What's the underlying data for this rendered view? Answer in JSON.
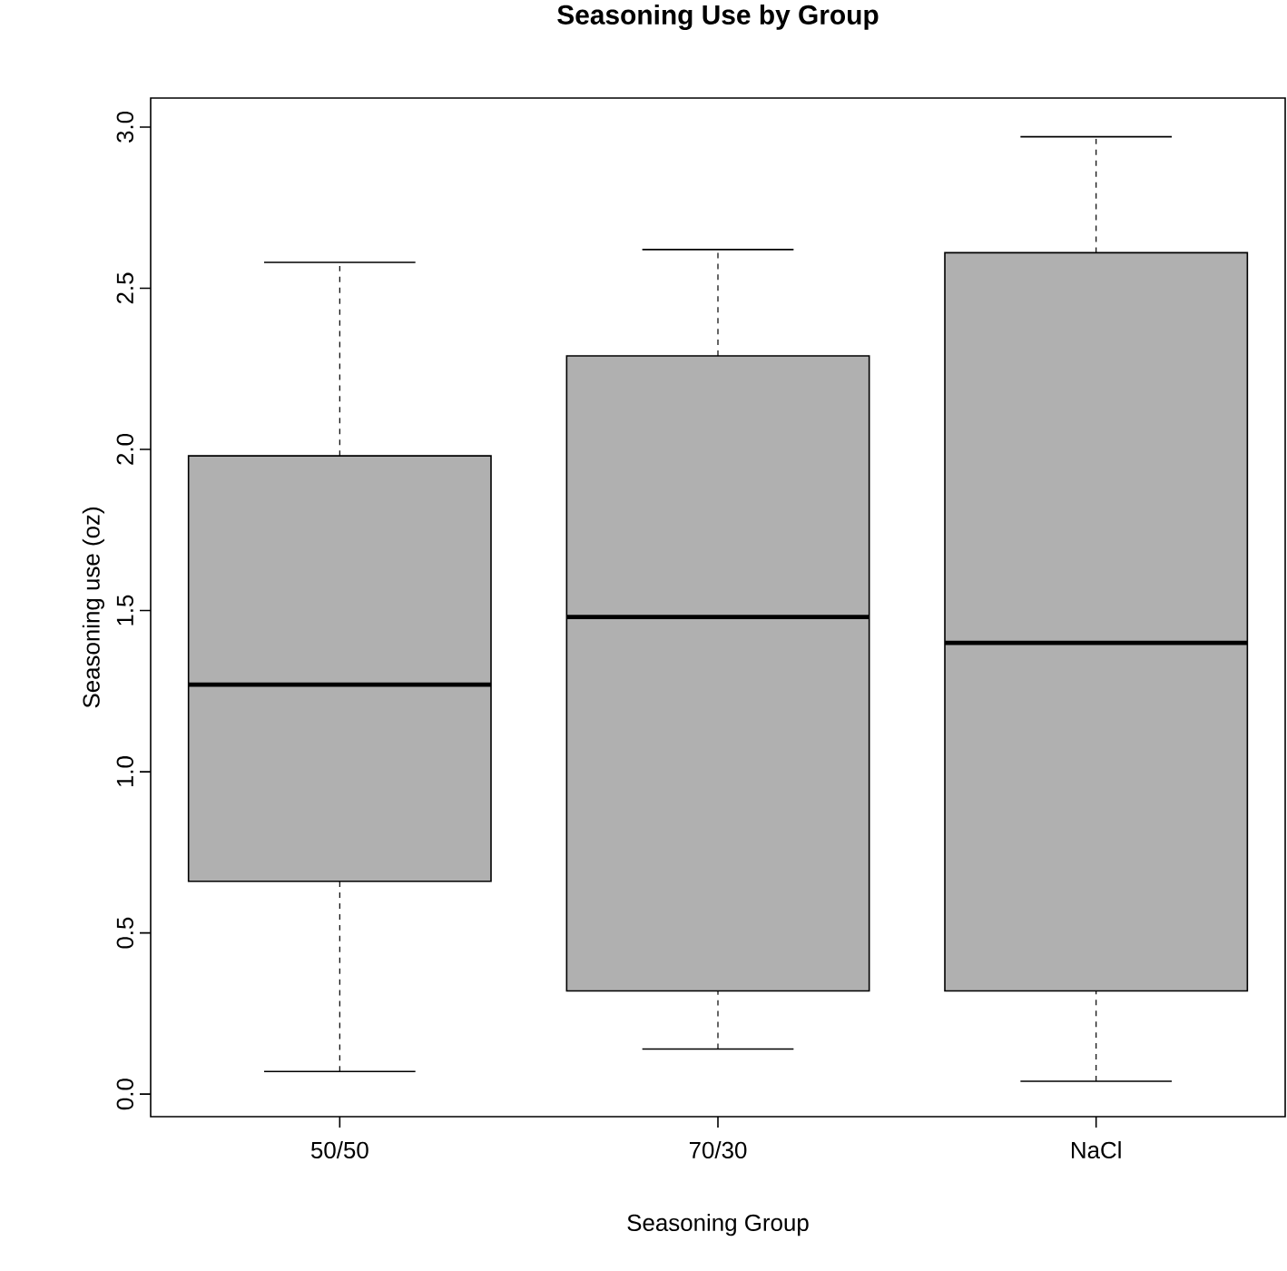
{
  "chart_data": {
    "type": "box",
    "title": "Seasoning Use by Group",
    "xlabel": "Seasoning Group",
    "ylabel": "Seasoning use (oz)",
    "categories": [
      "50/50",
      "70/30",
      "NaCl"
    ],
    "boxes": [
      {
        "low": 0.07,
        "q1": 0.66,
        "median": 1.27,
        "q3": 1.98,
        "high": 2.58
      },
      {
        "low": 0.14,
        "q1": 0.32,
        "median": 1.48,
        "q3": 2.29,
        "high": 2.62
      },
      {
        "low": 0.04,
        "q1": 0.32,
        "median": 1.4,
        "q3": 2.61,
        "high": 2.97
      }
    ],
    "color": "#b0b0b0",
    "ylim": [
      -0.07,
      3.09
    ],
    "yticks": [
      {
        "value": 0,
        "label": "0.0"
      },
      {
        "value": 0.5,
        "label": "0.5"
      },
      {
        "value": 1,
        "label": "1.0"
      },
      {
        "value": 1.5,
        "label": "1.5"
      },
      {
        "value": 2,
        "label": "2.0"
      },
      {
        "value": 2.5,
        "label": "2.5"
      },
      {
        "value": 3,
        "label": "3.0"
      }
    ]
  }
}
